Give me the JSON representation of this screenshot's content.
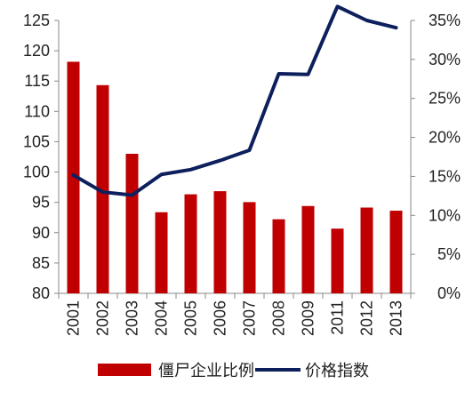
{
  "chart_data": {
    "type": "bar",
    "categories": [
      "2001",
      "2002",
      "2003",
      "2004",
      "2005",
      "2006",
      "2007",
      "2008",
      "2009",
      "2011",
      "2012",
      "2013"
    ],
    "series": [
      {
        "name": "僵尸企业比例",
        "type": "bar",
        "axis": "right",
        "color": "#C00000",
        "values": [
          0.297,
          0.267,
          0.179,
          0.104,
          0.127,
          0.131,
          0.117,
          0.095,
          0.112,
          0.083,
          0.11,
          0.106
        ]
      },
      {
        "name": "价格指数",
        "type": "line",
        "axis": "left",
        "color": "#0D1F5C",
        "values": [
          99.5,
          96.7,
          96.2,
          99.6,
          100.4,
          101.9,
          103.6,
          116.2,
          116.1,
          127.3,
          125.0,
          123.8
        ]
      }
    ],
    "y_left": {
      "range": [
        80,
        125
      ],
      "ticks": [
        "80",
        "85",
        "90",
        "95",
        "100",
        "105",
        "110",
        "115",
        "120",
        "125"
      ]
    },
    "y_right": {
      "range": [
        0,
        0.35
      ],
      "ticks": [
        "0%",
        "5%",
        "10%",
        "15%",
        "20%",
        "25%",
        "30%",
        "35%"
      ]
    },
    "grid": false,
    "legend_position": "bottom"
  }
}
